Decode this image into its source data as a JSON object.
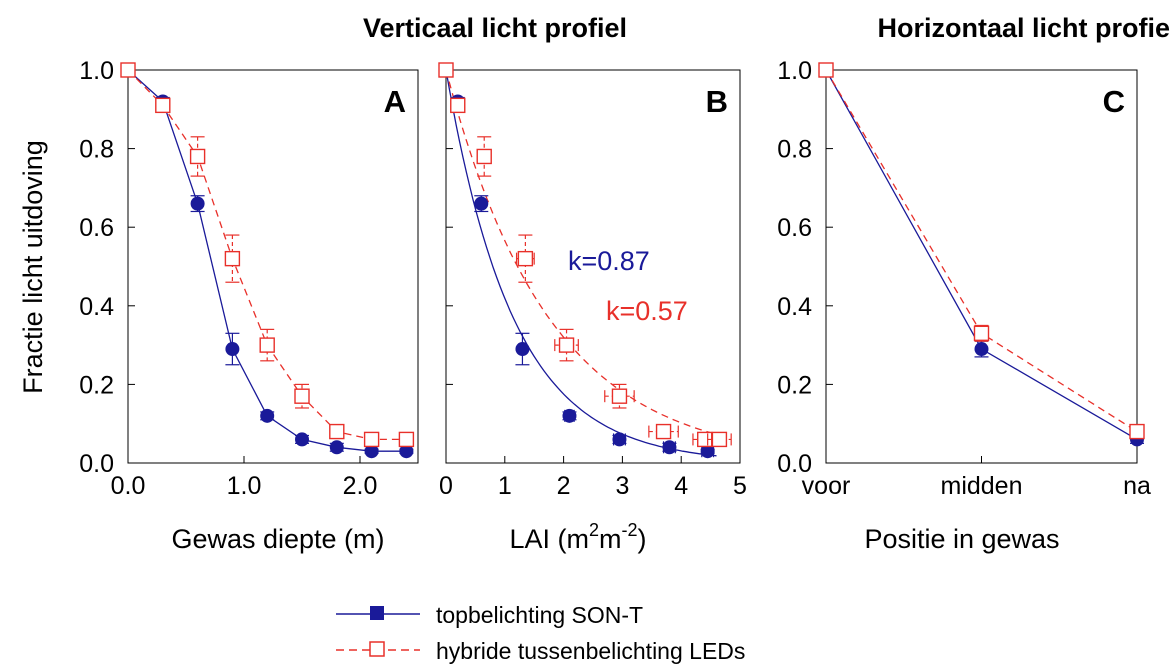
{
  "headings": {
    "vertical": "Verticaal licht profiel",
    "horizontal": "Horizontaal licht profie"
  },
  "ylabel": "Fractie licht uitdoving",
  "colors": {
    "son_t": "#1a1a99",
    "led": "#e8302a"
  },
  "legend": {
    "son_t": "topbelichting SON-T",
    "led": "hybride tussenbelichting LEDs"
  },
  "chart_data": [
    {
      "type": "line",
      "panel_label": "A",
      "xlabel": "Gewas diepte (m)",
      "xlim": [
        0,
        2.5
      ],
      "ylim": [
        0,
        1.0
      ],
      "xticks": [
        0.0,
        1.0,
        2.0
      ],
      "xtick_labels": [
        "0.0",
        "1.0",
        "2.0"
      ],
      "yticks": [
        0,
        0.2,
        0.4,
        0.6,
        0.8,
        1.0
      ],
      "ytick_labels": [
        "0.0",
        "0.2",
        "0.4",
        "0.6",
        "0.8",
        "1.0"
      ],
      "series": [
        {
          "key": "son_t",
          "x": [
            0,
            0.3,
            0.6,
            0.9,
            1.2,
            1.5,
            1.8,
            2.1,
            2.4
          ],
          "y": [
            1.0,
            0.92,
            0.66,
            0.29,
            0.12,
            0.06,
            0.04,
            0.03,
            0.03
          ],
          "y_err": [
            0,
            0.01,
            0.02,
            0.04,
            0.01,
            0.01,
            0.01,
            0.005,
            0.005
          ]
        },
        {
          "key": "led",
          "x": [
            0,
            0.3,
            0.6,
            0.9,
            1.2,
            1.5,
            1.8,
            2.1,
            2.4
          ],
          "y": [
            1.0,
            0.91,
            0.78,
            0.52,
            0.3,
            0.17,
            0.08,
            0.06,
            0.06
          ],
          "y_err": [
            0,
            0.01,
            0.05,
            0.06,
            0.04,
            0.03,
            0.01,
            0.01,
            0.01
          ]
        }
      ]
    },
    {
      "type": "scatter",
      "panel_label": "B",
      "xlabel_main": "LAI (m",
      "xlabel_sup1": "2",
      "xlabel_mid": "m",
      "xlabel_sup2": "-2",
      "xlabel_end": ")",
      "xlim": [
        0,
        5
      ],
      "ylim": [
        0,
        1.0
      ],
      "xticks": [
        0,
        1,
        2,
        3,
        4,
        5
      ],
      "xtick_labels": [
        "0",
        "1",
        "2",
        "3",
        "4",
        "5"
      ],
      "annotations": {
        "k_son_t": "k=0.87",
        "k_led": "k=0.57"
      },
      "fit": {
        "son_t_k": 0.87,
        "led_k": 0.57
      },
      "series": [
        {
          "key": "son_t",
          "x": [
            0,
            0.2,
            0.6,
            1.3,
            2.1,
            2.95,
            3.8,
            4.45
          ],
          "y": [
            1.0,
            0.92,
            0.66,
            0.29,
            0.12,
            0.06,
            0.04,
            0.03
          ],
          "y_err": [
            0,
            0.01,
            0.02,
            0.04,
            0.01,
            0.01,
            0.01,
            0.005
          ],
          "x_err": [
            0,
            0,
            0,
            0,
            0.08,
            0.1,
            0.1,
            0.1
          ]
        },
        {
          "key": "led",
          "x": [
            0,
            0.2,
            0.65,
            1.35,
            2.05,
            2.95,
            3.7,
            4.4,
            4.65
          ],
          "y": [
            1.0,
            0.91,
            0.78,
            0.52,
            0.3,
            0.17,
            0.08,
            0.06,
            0.06
          ],
          "y_err": [
            0,
            0.01,
            0.05,
            0.06,
            0.04,
            0.03,
            0.01,
            0.01,
            0.01
          ],
          "x_err": [
            0,
            0,
            0.1,
            0.15,
            0.2,
            0.25,
            0.25,
            0.2,
            0.2
          ]
        }
      ]
    },
    {
      "type": "line",
      "panel_label": "C",
      "xlabel": "Positie in gewas",
      "categories": [
        "voor",
        "midden",
        "na"
      ],
      "ylim": [
        0,
        1.0
      ],
      "yticks": [
        0,
        0.2,
        0.4,
        0.6,
        0.8,
        1.0
      ],
      "ytick_labels": [
        "0.0",
        "0.2",
        "0.4",
        "0.6",
        "0.8",
        "1.0"
      ],
      "series": [
        {
          "key": "son_t",
          "y": [
            1.0,
            0.29,
            0.06
          ],
          "y_err": [
            0,
            0.02,
            0.01
          ]
        },
        {
          "key": "led",
          "y": [
            1.0,
            0.33,
            0.08
          ],
          "y_err": [
            0,
            0.02,
            0.01
          ]
        }
      ]
    }
  ]
}
